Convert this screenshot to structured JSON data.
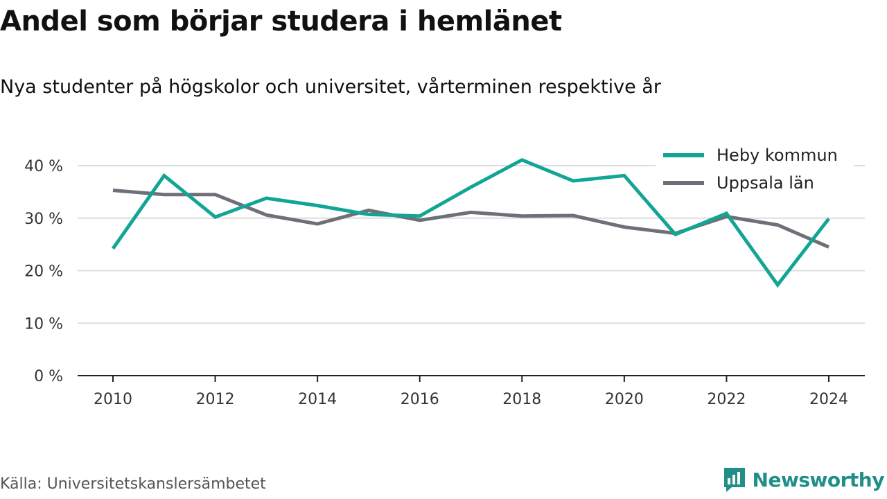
{
  "header": {
    "title": "Andel som börjar studera i hemlänet",
    "subtitle": "Nya studenter på högskolor och universitet, vårterminen respektive år"
  },
  "footer": {
    "source": "Källa: Universitetskanslersämbetet",
    "brand": "Newsworthy",
    "brand_icon": "chart-badge-icon"
  },
  "colors": {
    "heby": "#12a596",
    "uppsala": "#6f6f77",
    "grid": "#dddddd",
    "axis": "#222222",
    "brand": "#1f8f88"
  },
  "chart_data": {
    "type": "line",
    "x": [
      2010,
      2011,
      2012,
      2013,
      2014,
      2015,
      2016,
      2017,
      2018,
      2019,
      2020,
      2021,
      2022,
      2023,
      2024
    ],
    "x_ticks": [
      2010,
      2012,
      2014,
      2016,
      2018,
      2020,
      2022,
      2024
    ],
    "y_ticks": [
      0,
      10,
      20,
      30,
      40
    ],
    "y_tick_labels": [
      "0 %",
      "10 %",
      "20 %",
      "30 %",
      "40 %"
    ],
    "ylim": [
      0,
      40
    ],
    "grid": true,
    "legend_position": "top-right",
    "series": [
      {
        "name": "Heby kommun",
        "color": "#12a596",
        "values": [
          24.2,
          38.1,
          30.2,
          33.8,
          32.4,
          30.7,
          30.4,
          35.9,
          41.1,
          37.1,
          38.1,
          26.9,
          30.9,
          17.3,
          29.9
        ]
      },
      {
        "name": "Uppsala län",
        "color": "#6f6f77",
        "values": [
          35.3,
          34.5,
          34.5,
          30.6,
          28.9,
          31.5,
          29.6,
          31.1,
          30.4,
          30.5,
          28.3,
          27.1,
          30.3,
          28.7,
          24.5
        ]
      }
    ]
  }
}
